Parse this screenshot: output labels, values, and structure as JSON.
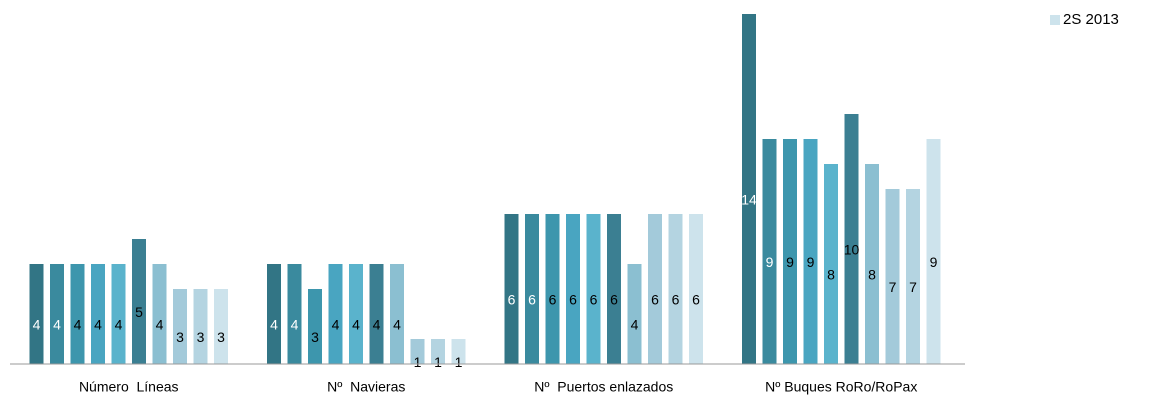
{
  "chart_data": {
    "type": "bar",
    "categories": [
      "Número  Líneas",
      "Nº  Navieras",
      "Nº  Puertos enlazados",
      "Nº Buques RoRo/RoPax"
    ],
    "ylim": [
      0,
      14
    ],
    "series": [
      {
        "color": "#327585",
        "values": [
          4,
          4,
          6,
          14
        ]
      },
      {
        "color": "#3a8a9e",
        "values": [
          4,
          4,
          6,
          9
        ]
      },
      {
        "color": "#3d96ad",
        "values": [
          4,
          3,
          6,
          9
        ]
      },
      {
        "color": "#49a5c1",
        "values": [
          4,
          4,
          6,
          9
        ]
      },
      {
        "color": "#5ab3cc",
        "values": [
          4,
          4,
          6,
          8
        ]
      },
      {
        "color": "#3b7f92",
        "values": [
          5,
          4,
          6,
          10
        ]
      },
      {
        "color": "#8bbfd1",
        "values": [
          4,
          4,
          4,
          8
        ]
      },
      {
        "color": "#a3cada",
        "values": [
          3,
          1,
          6,
          7
        ]
      },
      {
        "color": "#b4d4e1",
        "values": [
          3,
          1,
          6,
          7
        ]
      },
      {
        "name": "2S 2013",
        "color": "#cde3ec",
        "values": [
          3,
          1,
          6,
          9
        ]
      }
    ],
    "legend": "top-right"
  }
}
